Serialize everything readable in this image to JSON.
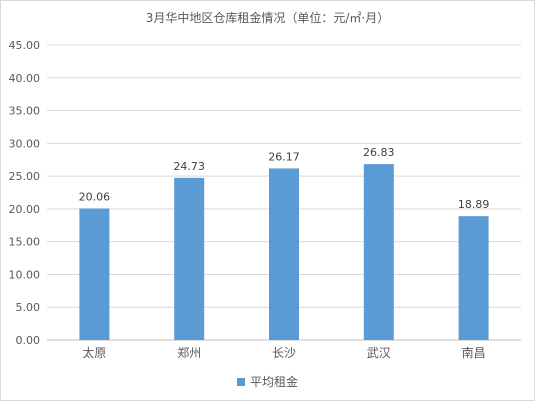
{
  "chart_data": {
    "type": "bar",
    "title": "3月华中地区仓库租金情况（单位：元/㎡·月）",
    "categories": [
      "太原",
      "郑州",
      "长沙",
      "武汉",
      "南昌"
    ],
    "series": [
      {
        "name": "平均租金",
        "values": [
          20.06,
          24.73,
          26.17,
          26.83,
          18.89
        ],
        "color": "#5b9bd5"
      }
    ],
    "ylim": [
      0,
      45
    ],
    "yticks": [
      "0.00",
      "5.00",
      "10.00",
      "15.00",
      "20.00",
      "25.00",
      "30.00",
      "35.00",
      "40.00",
      "45.00"
    ],
    "data_labels": [
      "20.06",
      "24.73",
      "26.17",
      "26.83",
      "18.89"
    ],
    "grid": true,
    "legend_position": "bottom"
  }
}
